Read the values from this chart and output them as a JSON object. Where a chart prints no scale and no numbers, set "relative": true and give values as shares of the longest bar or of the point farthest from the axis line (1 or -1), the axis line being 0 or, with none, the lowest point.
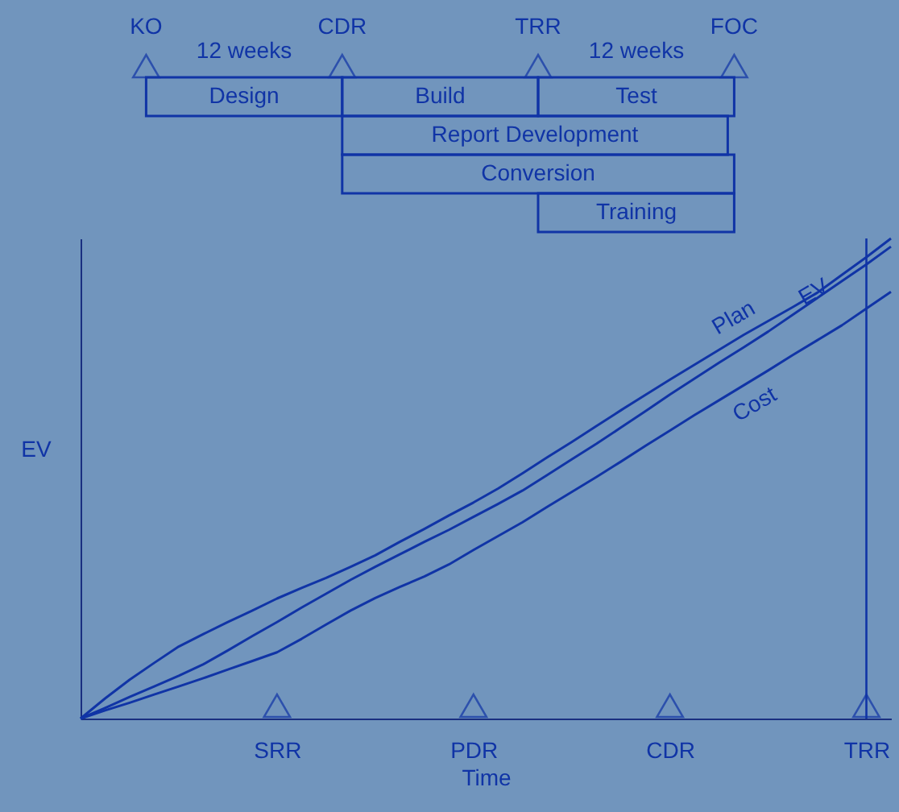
{
  "chart_data": [
    {
      "type": "other",
      "annotations": [
        "KO",
        "CDR",
        "TRR",
        "FOC",
        "12 weeks",
        "12 weeks",
        "Design",
        "Build",
        "Test",
        "Report Development",
        "Conversion",
        "Training"
      ]
    },
    {
      "type": "line",
      "relative": true,
      "xlabel": "Time",
      "ylabel": "EV",
      "grid": false,
      "legend": false,
      "categories": [
        null,
        null,
        null,
        null,
        null,
        null,
        null,
        null,
        "SRR",
        null,
        null,
        null,
        null,
        null,
        null,
        null,
        "PDR",
        null,
        null,
        null,
        null,
        null,
        null,
        null,
        "CDR",
        null,
        null,
        null,
        null,
        null,
        null,
        null,
        "TRR",
        null
      ],
      "ref_lines": [
        {
          "axis": "x",
          "value": "TRR"
        }
      ],
      "series": [
        {
          "name": "Plan",
          "color": "#1034a6",
          "values": [
            0,
            0.042,
            0.081,
            0.116,
            0.15,
            0.176,
            0.201,
            0.225,
            0.25,
            0.272,
            0.293,
            0.316,
            0.34,
            0.368,
            0.395,
            0.423,
            0.45,
            0.479,
            0.511,
            0.544,
            0.576,
            0.609,
            0.642,
            0.674,
            0.706,
            0.737,
            0.768,
            0.799,
            0.828,
            0.857,
            0.887,
            0.924,
            0.961,
            1.0
          ]
        },
        {
          "name": "EV",
          "color": "#1034a6",
          "values": [
            0,
            0.022,
            0.045,
            0.067,
            0.089,
            0.113,
            0.142,
            0.172,
            0.201,
            0.231,
            0.26,
            0.289,
            0.316,
            0.342,
            0.368,
            0.393,
            0.42,
            0.447,
            0.475,
            0.507,
            0.54,
            0.572,
            0.606,
            0.64,
            0.675,
            0.708,
            0.741,
            0.773,
            0.806,
            0.841,
            0.876,
            0.911,
            0.946,
            0.983
          ]
        },
        {
          "name": "Cost",
          "color": "#1034a6",
          "values": [
            0,
            0.017,
            0.033,
            0.05,
            0.067,
            0.084,
            0.102,
            0.12,
            0.138,
            0.166,
            0.196,
            0.225,
            0.251,
            0.274,
            0.296,
            0.321,
            0.351,
            0.38,
            0.409,
            0.441,
            0.472,
            0.503,
            0.535,
            0.568,
            0.6,
            0.632,
            0.663,
            0.694,
            0.725,
            0.757,
            0.788,
            0.819,
            0.854,
            0.889
          ]
        }
      ]
    }
  ]
}
